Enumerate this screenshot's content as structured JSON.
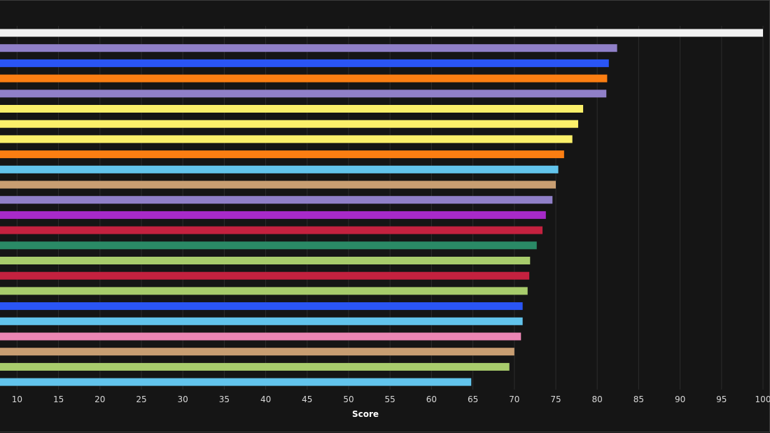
{
  "chart_data": {
    "type": "bar",
    "orientation": "horizontal",
    "title": "",
    "xlabel": "Score",
    "ylabel": "",
    "xlim": [
      9.2,
      100
    ],
    "xticks": [
      10,
      15,
      20,
      25,
      30,
      35,
      40,
      45,
      50,
      55,
      60,
      65,
      70,
      75,
      80,
      85,
      90,
      95,
      100
    ],
    "grid": true,
    "legend": "none",
    "values": [
      100,
      82.4,
      81.4,
      81.2,
      81.1,
      78.3,
      77.7,
      77.0,
      76.0,
      75.3,
      75.0,
      74.6,
      73.8,
      73.4,
      72.7,
      71.9,
      71.8,
      71.6,
      71.0,
      71.0,
      70.8,
      70.0,
      69.4,
      64.8
    ],
    "colors": [
      "#f2f2f2",
      "#9080c8",
      "#2a55f5",
      "#fb7e12",
      "#9080c8",
      "#fbf06a",
      "#fbf06a",
      "#fbf06a",
      "#fb7e12",
      "#62c4ec",
      "#c89e72",
      "#9080c8",
      "#a72ac8",
      "#c4213f",
      "#2a8a66",
      "#a8cc6c",
      "#c4213f",
      "#a8cc6c",
      "#2a55f5",
      "#62c4ec",
      "#ec86b4",
      "#c89e72",
      "#a8cc6c",
      "#62c4ec"
    ]
  }
}
